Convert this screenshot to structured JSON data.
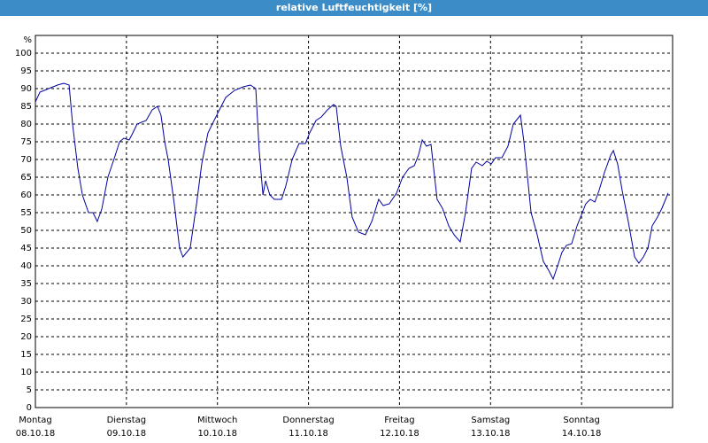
{
  "chart_data": {
    "type": "line",
    "title": "relative Luftfeuchtigkeit [%]",
    "ylabel": "%",
    "xlim": [
      0,
      168
    ],
    "xticks": [
      {
        "value": 0,
        "label": "Montag"
      },
      {
        "value": 24,
        "label": "Dienstag"
      },
      {
        "value": 48,
        "label": "Mittwoch"
      },
      {
        "value": 72,
        "label": "Donnerstag"
      },
      {
        "value": 96,
        "label": "Freitag"
      },
      {
        "value": 120,
        "label": "Samstag"
      },
      {
        "value": 144,
        "label": "Sonntag"
      }
    ],
    "xtick_dates": [
      "08.10.18",
      "09.10.18",
      "10.10.18",
      "11.10.18",
      "12.10.18",
      "13.10.18",
      "14.10.18"
    ],
    "ylim": [
      0,
      105
    ],
    "yticks": [
      0,
      5,
      10,
      15,
      20,
      25,
      30,
      35,
      40,
      45,
      50,
      55,
      60,
      65,
      70,
      75,
      80,
      85,
      90,
      95,
      100
    ],
    "grid": true,
    "series": [
      {
        "color": "#0000a0",
        "x": [
          0,
          1.2,
          3.5,
          5.8,
          7.5,
          8.9,
          9.8,
          11.2,
          12.4,
          14,
          15.2,
          16.3,
          17.5,
          19.1,
          21,
          22.2,
          23.3,
          24.7,
          25.7,
          26.8,
          29.2,
          30.8,
          32.2,
          33.1,
          34.1,
          35,
          36.6,
          38,
          38.9,
          40.8,
          42.5,
          43.9,
          45.5,
          47.1,
          48.5,
          50.2,
          52.5,
          54.8,
          56.7,
          58.1,
          59,
          60,
          60.7,
          61.8,
          63,
          64.9,
          66,
          67.7,
          69.5,
          71.2,
          72.3,
          74,
          75.4,
          77,
          78.6,
          79.3,
          80.5,
          82.1,
          83.5,
          85.2,
          87,
          88.7,
          90.5,
          91.7,
          93.3,
          95.2,
          96.8,
          98.5,
          99.9,
          101,
          102,
          103.1,
          104.3,
          105.9,
          107.3,
          109,
          110.4,
          112,
          113.4,
          115,
          116.2,
          117.8,
          119,
          120.2,
          121.3,
          123,
          124.6,
          126,
          127.9,
          128.8,
          130.7,
          132.3,
          133.9,
          135.3,
          136.5,
          137.7,
          138.8,
          140,
          141.4,
          142.8,
          144.2,
          145.1,
          146.3,
          147.5,
          148.6,
          150,
          151.7,
          152.4,
          153.5,
          154.7,
          156.3,
          158,
          159.1,
          160.3,
          161.5,
          162.6,
          164,
          165.2,
          166.8
        ],
        "values": [
          86.25,
          89,
          90,
          91,
          91.5,
          91,
          80,
          67.5,
          60,
          55,
          55,
          52.5,
          56,
          65,
          71,
          75,
          76,
          75.5,
          77.5,
          80,
          81,
          84,
          85,
          82.5,
          75,
          70,
          57.5,
          45,
          42.5,
          45,
          57.5,
          69,
          77.5,
          81,
          84,
          87.5,
          89.5,
          90.5,
          91,
          90,
          72.5,
          60,
          64,
          60,
          58.75,
          58.75,
          62.5,
          70,
          74.5,
          74.5,
          77.5,
          81,
          82,
          84,
          85.5,
          85,
          73.75,
          65,
          53.75,
          49.5,
          48.75,
          52.5,
          58.75,
          57,
          57.5,
          60.5,
          65,
          67.5,
          68.25,
          71.25,
          75.5,
          73.75,
          74.25,
          58.75,
          56.25,
          51.25,
          48.75,
          46.75,
          55,
          67.5,
          69.25,
          68.25,
          69.5,
          68.75,
          70.5,
          70.5,
          73.75,
          80,
          82.5,
          75,
          55,
          48.75,
          41.25,
          38.75,
          36.25,
          40,
          43.75,
          45.75,
          46.25,
          51.25,
          55,
          57.5,
          58.75,
          58,
          61.25,
          66.25,
          71.25,
          72.5,
          68.75,
          61.25,
          52.5,
          42.5,
          40.75,
          42.5,
          45,
          51.25,
          53.75,
          56.25,
          60.5
        ]
      }
    ]
  }
}
